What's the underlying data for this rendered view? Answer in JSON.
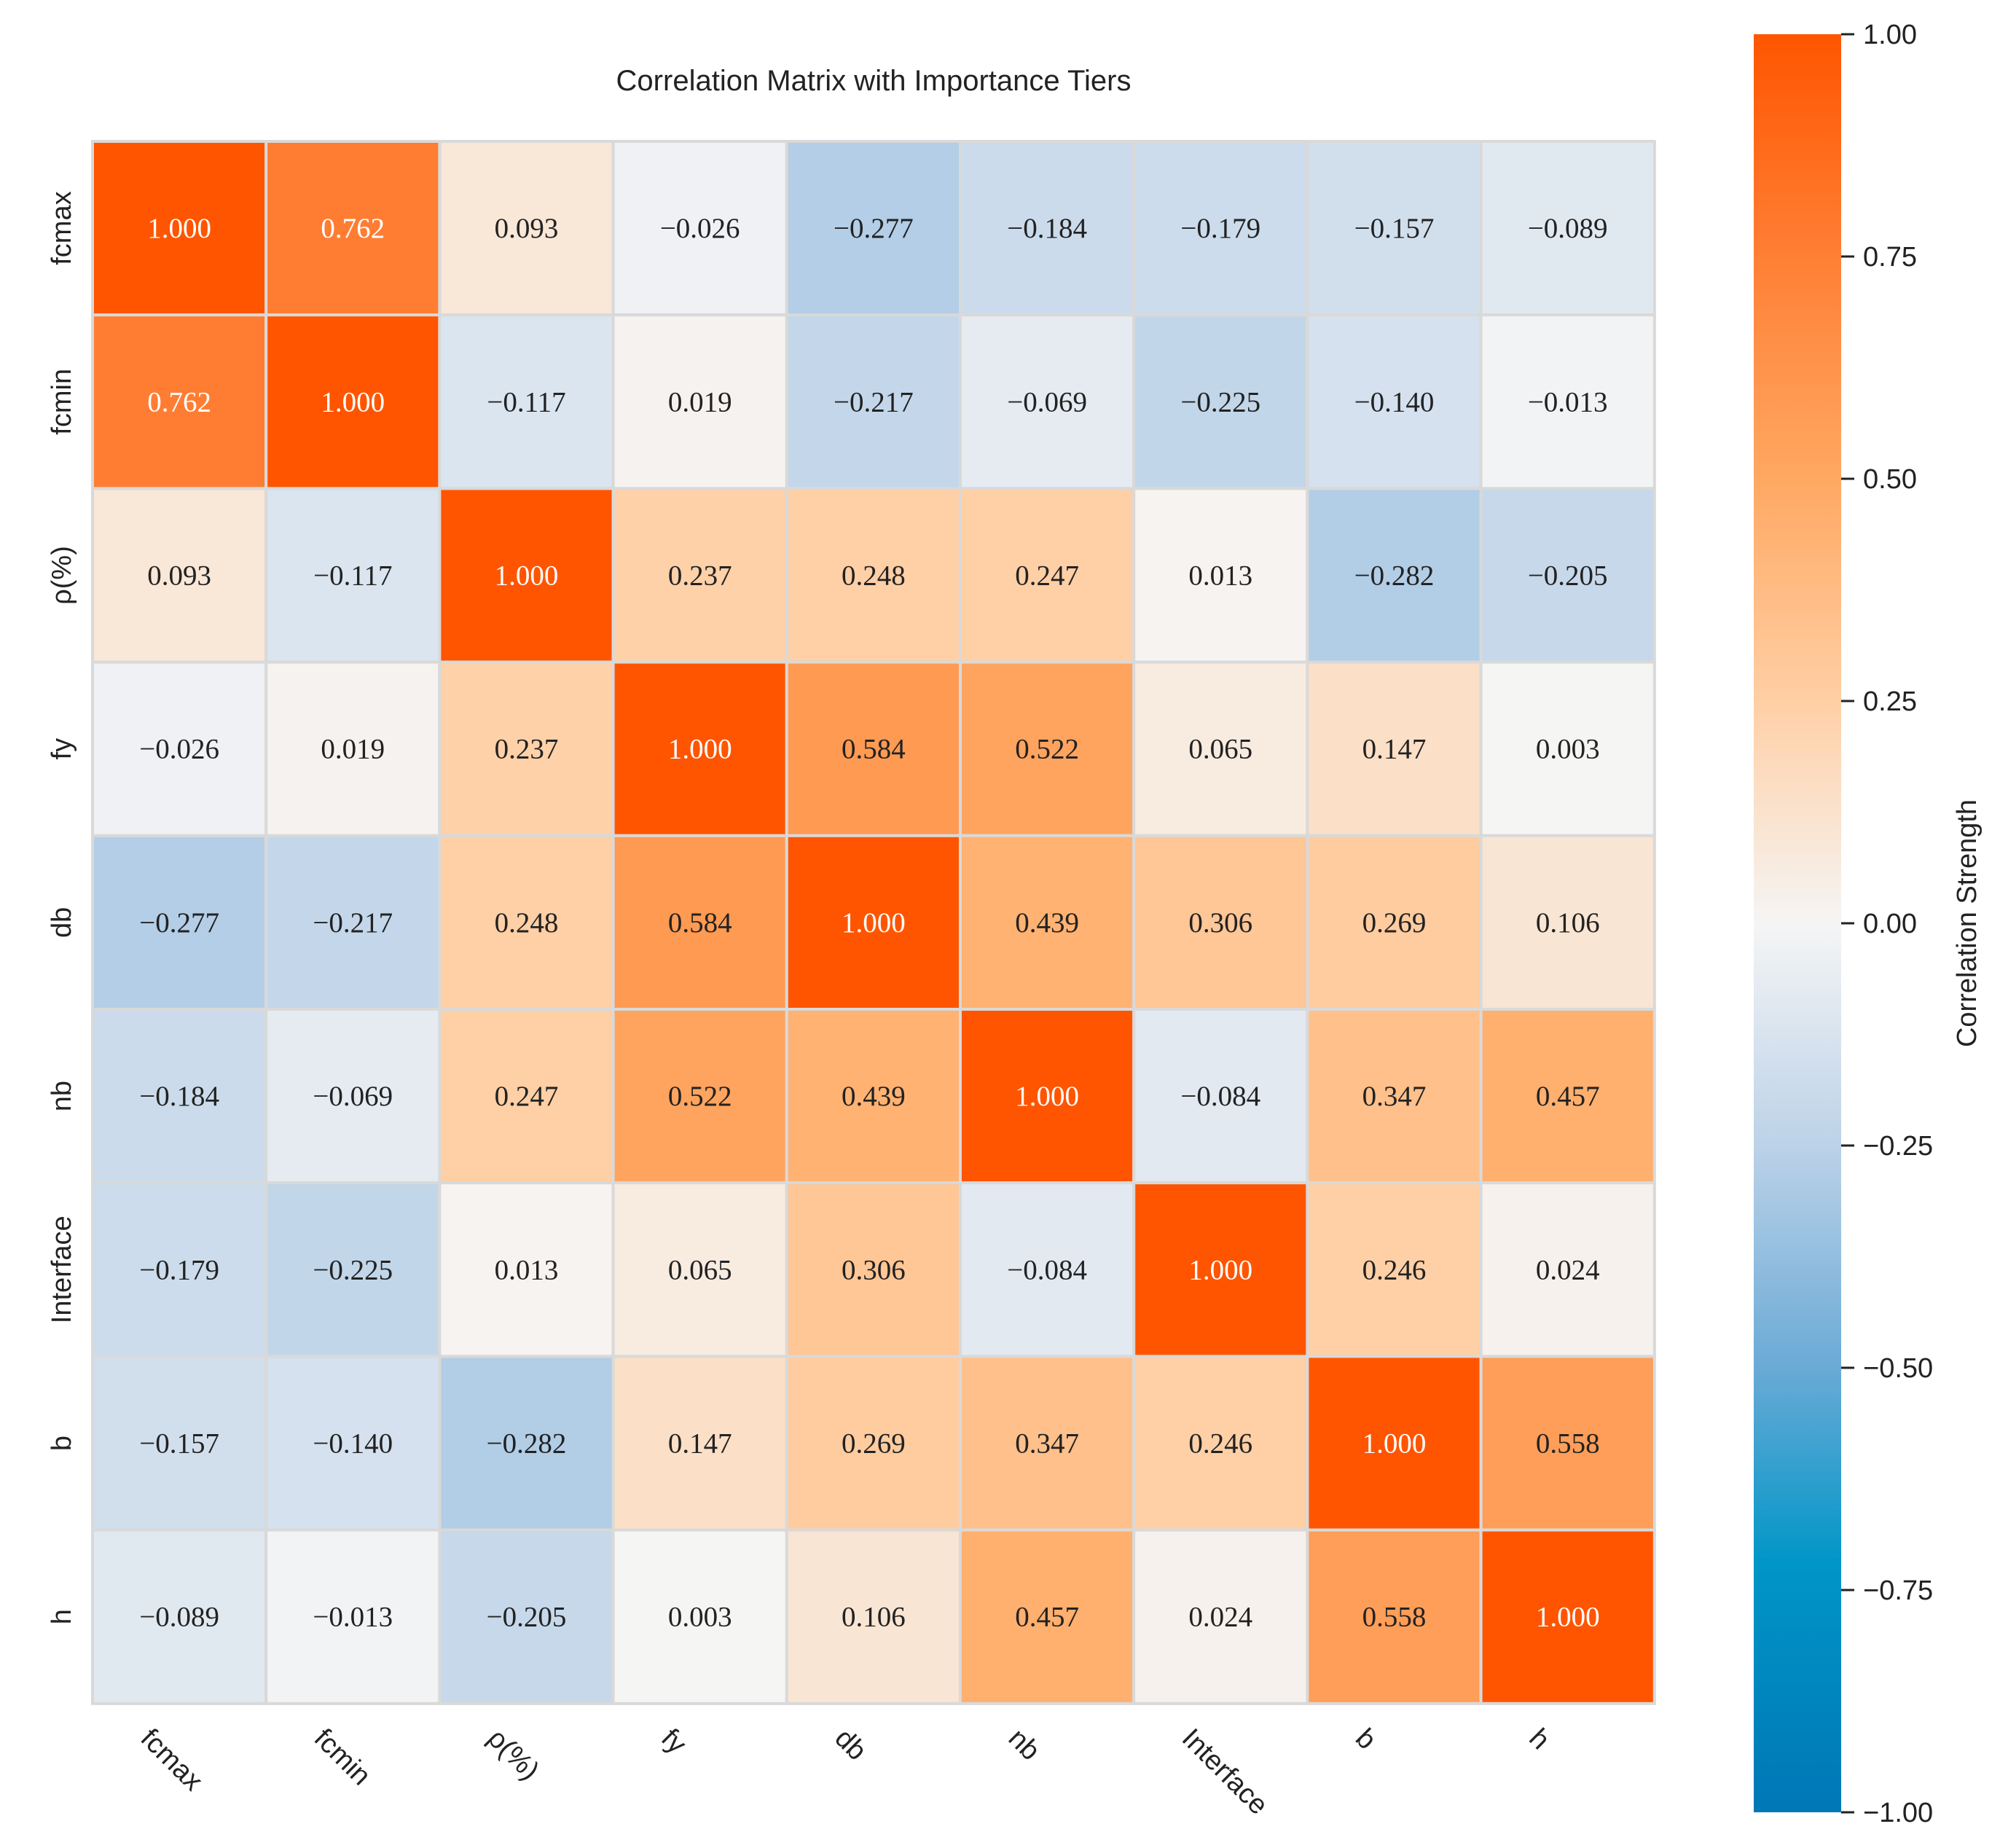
{
  "chart_data": {
    "type": "heatmap",
    "title": "Correlation Matrix with Importance Tiers",
    "labels": [
      "fcmax",
      "fcmin",
      "ρ(%)",
      "fy",
      "db",
      "nb",
      "Interface",
      "b",
      "h"
    ],
    "matrix": [
      [
        1.0,
        0.762,
        0.093,
        -0.026,
        -0.277,
        -0.184,
        -0.179,
        -0.157,
        -0.089
      ],
      [
        0.762,
        1.0,
        -0.117,
        0.019,
        -0.217,
        -0.069,
        -0.225,
        -0.14,
        -0.013
      ],
      [
        0.093,
        -0.117,
        1.0,
        0.237,
        0.248,
        0.247,
        0.013,
        -0.282,
        -0.205
      ],
      [
        -0.026,
        0.019,
        0.237,
        1.0,
        0.584,
        0.522,
        0.065,
        0.147,
        0.003
      ],
      [
        -0.277,
        -0.217,
        0.248,
        0.584,
        1.0,
        0.439,
        0.306,
        0.269,
        0.106
      ],
      [
        -0.184,
        -0.069,
        0.247,
        0.522,
        0.439,
        1.0,
        -0.084,
        0.347,
        0.457
      ],
      [
        -0.179,
        -0.225,
        0.013,
        0.065,
        0.306,
        -0.084,
        1.0,
        0.246,
        0.024
      ],
      [
        -0.157,
        -0.14,
        -0.282,
        0.147,
        0.269,
        0.347,
        0.246,
        1.0,
        0.558
      ],
      [
        -0.089,
        -0.013,
        -0.205,
        0.003,
        0.106,
        0.457,
        0.024,
        0.558,
        1.0
      ]
    ],
    "value_format": "3 decimals",
    "colorbar": {
      "label": "Correlation Strength",
      "range": [
        -1,
        1
      ],
      "ticks": [
        "1.00",
        "0.75",
        "0.50",
        "0.25",
        "0.00",
        "−0.25",
        "−0.50",
        "−0.75",
        "−1.00"
      ],
      "tick_values": [
        1,
        0.75,
        0.5,
        0.25,
        0,
        -0.25,
        -0.5,
        -0.75,
        -1
      ]
    },
    "colormap": [
      [
        -1,
        "#0077b6"
      ],
      [
        -0.72,
        "#0096c7"
      ],
      [
        -0.5,
        "#6aaad6"
      ],
      [
        -0.25,
        "#bcd2e8"
      ],
      [
        0,
        "#f5f5f5"
      ],
      [
        0.25,
        "#ffcfa5"
      ],
      [
        0.5,
        "#ffa862"
      ],
      [
        0.75,
        "#ff7f35"
      ],
      [
        1,
        "#ff5500"
      ]
    ],
    "grid_line_color": "#d9d9d9",
    "text_dark": "#222222",
    "text_light": "#ffffff"
  }
}
